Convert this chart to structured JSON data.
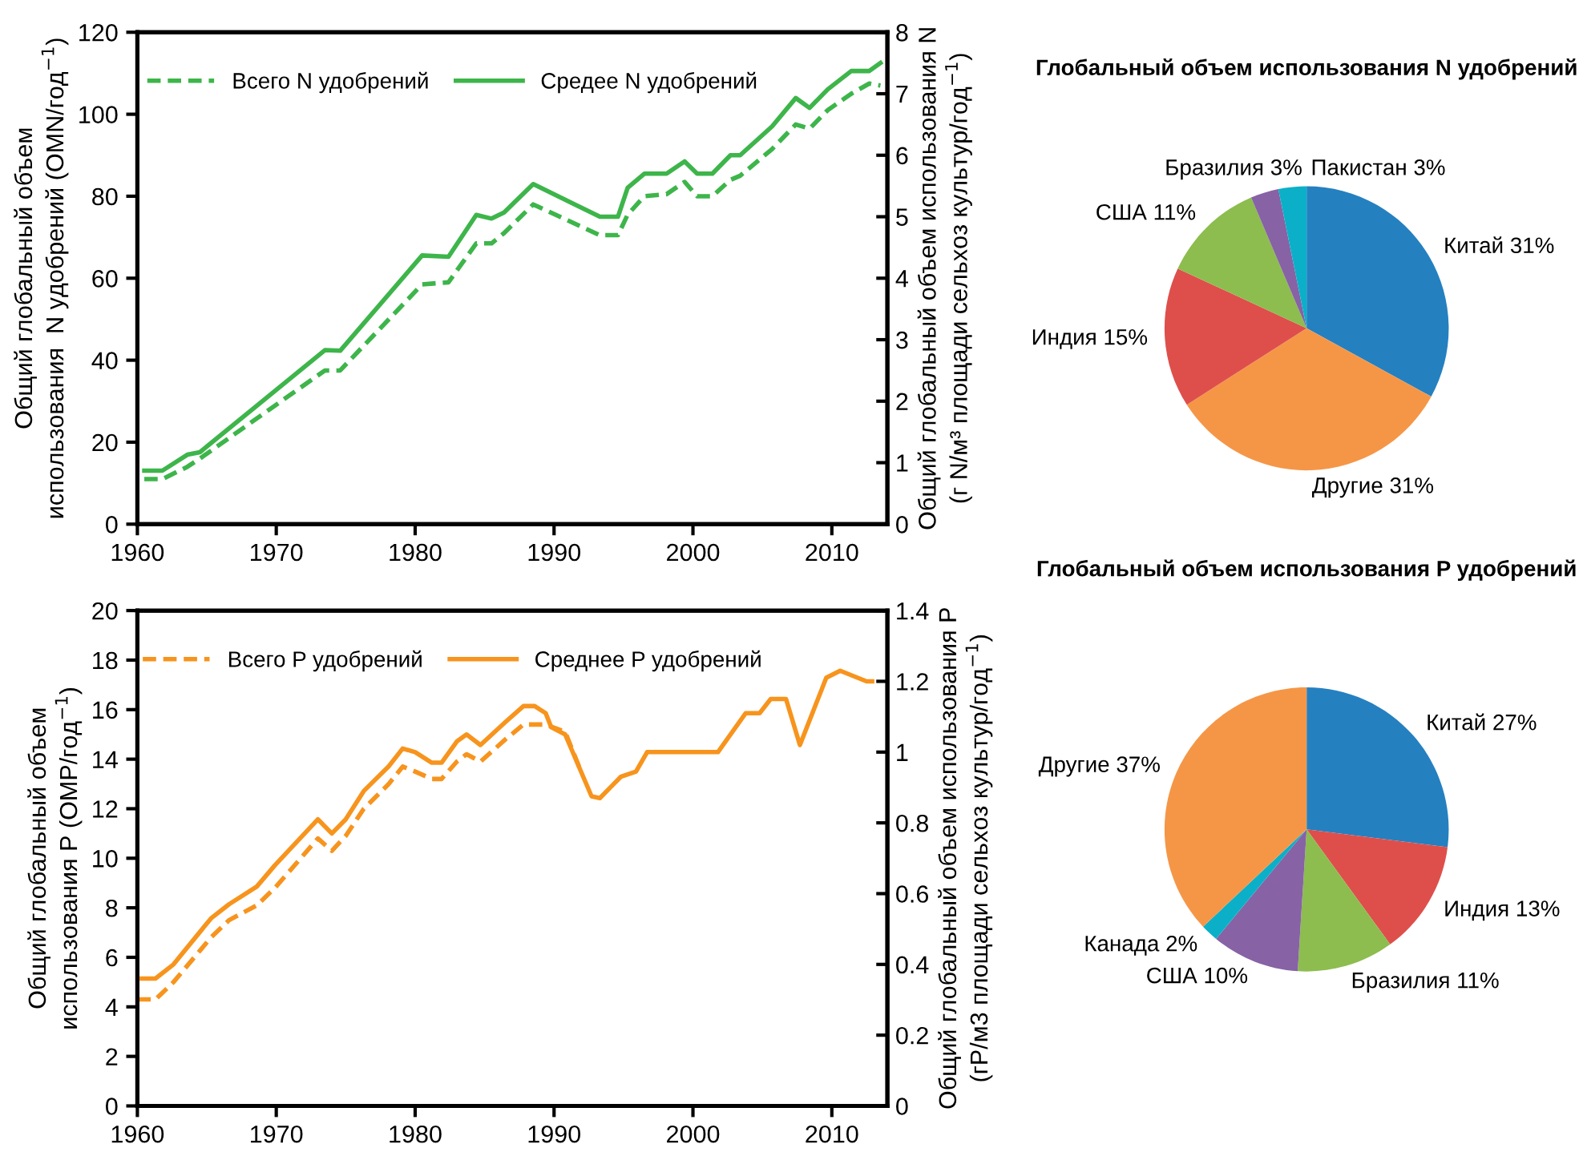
{
  "chart_data": [
    {
      "type": "line",
      "ylabel": "Общий глобальный объем\nиспользования  N удобрений (OMN/год$^{−1}$)",
      "y2label": "Общий глобальный объем использования N\n(г N/м³ площади сельхоз культур/год$^{−1}$)",
      "xlim": [
        1960,
        2014
      ],
      "xticks": [
        1960,
        1970,
        1980,
        1990,
        2000,
        2010
      ],
      "ylim": [
        0,
        120
      ],
      "yticks": [
        0,
        20,
        40,
        60,
        80,
        100,
        120
      ],
      "y2lim": [
        0,
        8
      ],
      "y2ticks": [
        0,
        1,
        2,
        3,
        4,
        5,
        6,
        7,
        8
      ],
      "legend": "top",
      "series": [
        {
          "name": "Всего N удобрений",
          "color": "#3db54a",
          "line_style": "dashed",
          "x": [
            1960.5,
            1961.8,
            1963.6,
            1964.5,
            1973.5,
            1974.6,
            1980.5,
            1982.4,
            1984.4,
            1985.5,
            1986.4,
            1988.5,
            1993.3,
            1994.6,
            1995.3,
            1996.5,
            1998.1,
            1999.4,
            2000.3,
            2001.4,
            2002.7,
            2003.4,
            2005.7,
            2007.4,
            2008.4,
            2009.7,
            2011.4,
            2012.7,
            2013.5
          ],
          "values": [
            11,
            11,
            14,
            16,
            37.5,
            37.5,
            58.5,
            59,
            68.5,
            68.5,
            71,
            78,
            70.5,
            70.5,
            75.5,
            80,
            80.5,
            83.5,
            80,
            80,
            84,
            85,
            91.5,
            97.5,
            96.5,
            101,
            105,
            107.5,
            107
          ]
        },
        {
          "name": "Средее N удобрений",
          "color": "#3db54a",
          "line_style": "solid",
          "axis": "y2",
          "x": [
            1960.5,
            1961.8,
            1963.6,
            1964.5,
            1973.5,
            1974.6,
            1980.5,
            1982.4,
            1984.4,
            1985.5,
            1986.4,
            1988.5,
            1993.3,
            1994.6,
            1995.3,
            1996.5,
            1998.1,
            1999.4,
            2000.3,
            2001.4,
            2002.7,
            2003.4,
            2005.7,
            2007.4,
            2008.4,
            2009.7,
            2011.4,
            2012.7,
            2013.5
          ],
          "values": [
            0.87,
            0.87,
            1.13,
            1.17,
            2.83,
            2.82,
            4.37,
            4.35,
            5.03,
            4.97,
            5.07,
            5.53,
            5.0,
            5.0,
            5.47,
            5.7,
            5.7,
            5.9,
            5.7,
            5.7,
            6.0,
            6.0,
            6.47,
            6.93,
            6.77,
            7.07,
            7.37,
            7.37,
            7.5
          ]
        }
      ]
    },
    {
      "type": "pie",
      "title": "Глобальный объем использования N удобрений",
      "categories": [
        "Китай",
        "Другие",
        "Индия",
        "США",
        "Бразилия",
        "Пакистан"
      ],
      "values": [
        31,
        31,
        15,
        11,
        3,
        3
      ],
      "value_labels": [
        "31%",
        "31%",
        "15%",
        "11%",
        "3%",
        "3%"
      ],
      "colors": [
        "#2580c0",
        "#f59647",
        "#de4f4b",
        "#8cbd4e",
        "#8762a5",
        "#0bb0c8"
      ]
    },
    {
      "type": "line",
      "ylabel": "Общий глобальный объем\nиспользования P (OMP/год$^{−1}$)",
      "y2label": "Общий глобальный объем использования P\n(гP/м3 площади сельхоз культур/год$^{−1}$)",
      "xlim": [
        1960,
        2014
      ],
      "xticks": [
        1960,
        1970,
        1980,
        1990,
        2000,
        2010
      ],
      "ylim": [
        0,
        20
      ],
      "yticks": [
        0,
        2,
        4,
        6,
        8,
        10,
        12,
        14,
        16,
        18,
        20
      ],
      "y2lim": [
        0,
        1.4
      ],
      "y2ticks": [
        0,
        {
          "value": 0.2,
          "label": "0.2"
        },
        {
          "value": 0.4,
          "label": "0.4"
        },
        {
          "value": 0.6,
          "label": "0.6"
        },
        {
          "value": 0.8,
          "label": "0.8"
        },
        1,
        {
          "value": 1.2,
          "label": "1.2"
        },
        {
          "value": 1.4,
          "label": "1.4"
        }
      ],
      "legend": "top",
      "series": [
        {
          "name": "Всего P удобрений",
          "color": "#f7941d",
          "line_style": "dashed",
          "x": [
            1960,
            1961.3,
            1962.6,
            1965.3,
            1966.6,
            1968.6,
            1969.9,
            1973,
            1974,
            1975,
            1976.3,
            1978.1,
            1979.1,
            1980,
            1981.2,
            1981.9,
            1983,
            1983.7,
            1984.7,
            1986.5,
            1987.8,
            1988.6,
            1989.4,
            1990.8,
            1991.8
          ],
          "values": [
            4.3,
            4.3,
            5.0,
            6.8,
            7.5,
            8.1,
            8.8,
            10.8,
            10.3,
            10.9,
            12.0,
            13.0,
            13.7,
            13.5,
            13.2,
            13.2,
            13.9,
            14.2,
            13.9,
            14.8,
            15.4,
            15.4,
            15.4,
            15.1,
            13.7
          ]
        },
        {
          "name": "Среднее P удобрений",
          "color": "#f7941d",
          "line_style": "solid",
          "axis": "y2",
          "x": [
            1960,
            1961.3,
            1962.6,
            1965.3,
            1966.6,
            1968.6,
            1969.9,
            1973,
            1974,
            1975,
            1976.3,
            1978.1,
            1979.1,
            1980,
            1981.2,
            1981.9,
            1983,
            1983.7,
            1984.7,
            1986.5,
            1987.8,
            1988.6,
            1989.4,
            1989.8,
            1990.8,
            1992.7,
            1993.3,
            1994.8,
            1995.9,
            1996.7,
            2001.8,
            2003.8,
            2004.8,
            2005.6,
            2006.7,
            2007.7,
            2009.6,
            2010.6,
            2012.5,
            2012.9
          ],
          "values": [
            0.36,
            0.36,
            0.4,
            0.53,
            0.57,
            0.62,
            0.68,
            0.81,
            0.77,
            0.81,
            0.89,
            0.96,
            1.01,
            1.0,
            0.97,
            0.97,
            1.03,
            1.05,
            1.02,
            1.085,
            1.13,
            1.13,
            1.11,
            1.07,
            1.05,
            0.875,
            0.87,
            0.93,
            0.945,
            1.0,
            1.0,
            1.11,
            1.11,
            1.15,
            1.15,
            1.02,
            1.21,
            1.23,
            1.2,
            1.2
          ]
        }
      ]
    },
    {
      "type": "pie",
      "title": "Глобальный объем использования P удобрений",
      "categories": [
        "Китай",
        "Индия",
        "Бразилия",
        "США",
        "Канада",
        "Другие"
      ],
      "values": [
        27,
        13,
        11,
        10,
        2,
        37
      ],
      "value_labels": [
        "27%",
        "13%",
        "11%",
        "10%",
        "2%",
        "37%"
      ],
      "colors": [
        "#2580c0",
        "#de4f4b",
        "#8cbd4e",
        "#8762a5",
        "#0bb0c8",
        "#f59647"
      ]
    }
  ]
}
